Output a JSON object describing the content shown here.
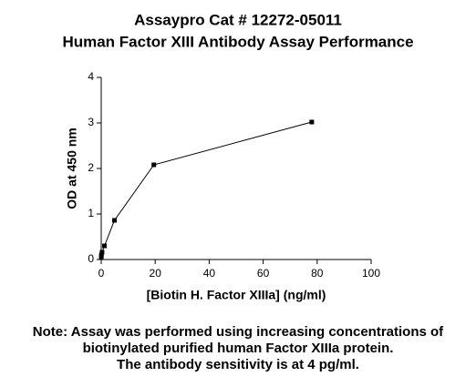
{
  "chart_data": {
    "type": "line",
    "title": "Assaypro Cat # 12272-05011",
    "subtitle": "Human Factor XIII Antibody Assay Performance",
    "x_label": "[Biotin H. Factor XIIIa] (ng/ml)",
    "y_label": "OD at 450 nm",
    "x": [
      0.02,
      0.08,
      0.3,
      1.2,
      4.9,
      19.5,
      78
    ],
    "values": [
      0.06,
      0.1,
      0.16,
      0.3,
      0.86,
      2.08,
      3.02
    ],
    "color": "#000000",
    "xlim": [
      0,
      100
    ],
    "xticks": [
      0,
      20,
      40,
      60,
      80,
      100
    ],
    "ylim": [
      0,
      4
    ],
    "yticks": [
      0,
      1,
      2,
      3,
      4
    ],
    "grid": false,
    "notes": [
      "Note: Assay was performed using increasing concentrations of",
      "biotinylated purified human Factor XIIIa protein.",
      "The antibody sensitivity is at 4 pg/ml."
    ]
  }
}
